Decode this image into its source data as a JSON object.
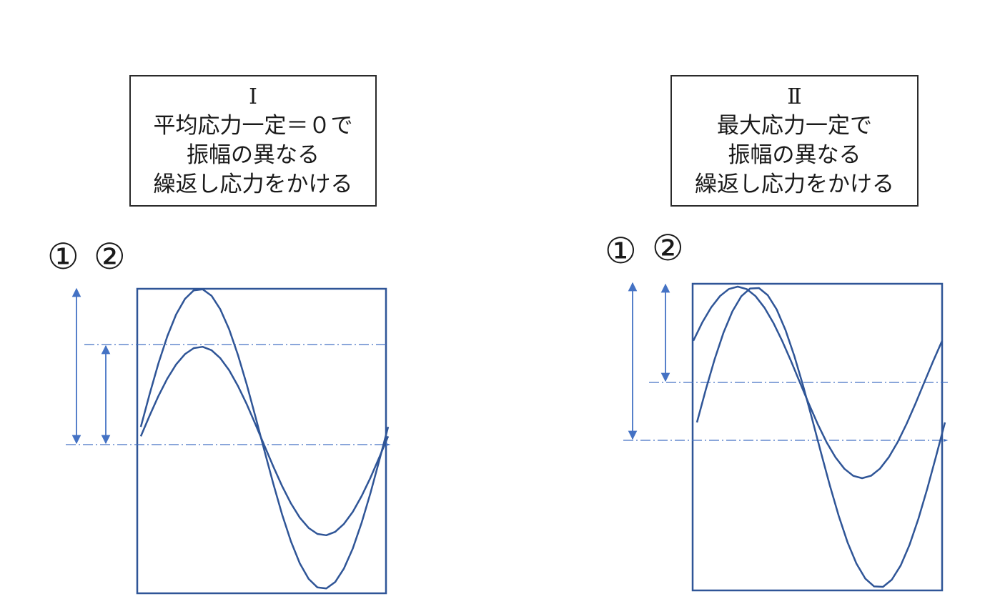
{
  "panels": [
    {
      "id": "I",
      "numeral": "Ⅰ",
      "lines": [
        "平均応力一定＝０で",
        "振幅の異なる",
        "繰返し応力をかける"
      ],
      "markers": [
        "①",
        "②"
      ]
    },
    {
      "id": "II",
      "numeral": "Ⅱ",
      "lines": [
        "最大応力一定で",
        "振幅の異なる",
        "繰返し応力をかける"
      ],
      "markers": [
        "①",
        "②"
      ]
    }
  ],
  "colors": {
    "wave": "#2f5597",
    "frame": "#2f5597",
    "guide": "#4472c4",
    "arrow": "#4472c4",
    "text": "#1a1a1a"
  }
}
